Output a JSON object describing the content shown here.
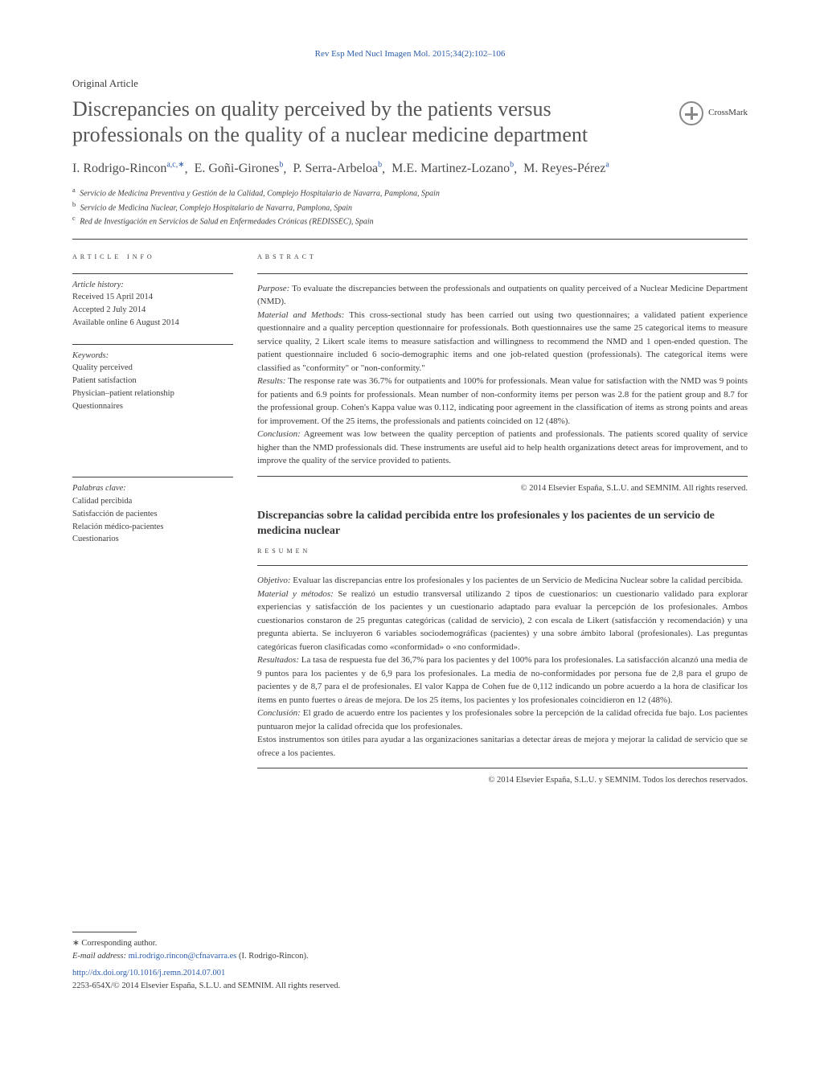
{
  "journal_ref": "Rev Esp Med Nucl Imagen Mol. 2015;34(2):102–106",
  "article_type": "Original Article",
  "title": "Discrepancies on quality perceived by the patients versus professionals on the quality of a nuclear medicine department",
  "crossmark_label": "CrossMark",
  "authors": [
    {
      "name": "I. Rodrigo-Rincon",
      "sup": "a,c,∗"
    },
    {
      "name": "E. Goñi-Girones",
      "sup": "b"
    },
    {
      "name": "P. Serra-Arbeloa",
      "sup": "b"
    },
    {
      "name": "M.E. Martinez-Lozano",
      "sup": "b"
    },
    {
      "name": "M. Reyes-Pérez",
      "sup": "a"
    }
  ],
  "affiliations": [
    {
      "label": "a",
      "text": "Servicio de Medicina Preventiva y Gestión de la Calidad, Complejo Hospitalario de Navarra, Pamplona, Spain"
    },
    {
      "label": "b",
      "text": "Servicio de Medicina Nuclear, Complejo Hospitalario de Navarra, Pamplona, Spain"
    },
    {
      "label": "c",
      "text": "Red de Investigación en Servicios de Salud en Enfermedades Crónicas (REDISSEC), Spain"
    }
  ],
  "article_info_label": "ARTICLE INFO",
  "abstract_label": "ABSTRACT",
  "history": {
    "title": "Article history:",
    "received": "Received 15 April 2014",
    "accepted": "Accepted 2 July 2014",
    "online": "Available online 6 August 2014"
  },
  "keywords": {
    "title": "Keywords:",
    "items": [
      "Quality perceived",
      "Patient satisfaction",
      "Physician–patient relationship",
      "Questionnaires"
    ]
  },
  "abstract": {
    "purpose_label": "Purpose:",
    "purpose": "To evaluate the discrepancies between the professionals and outpatients on quality perceived of a Nuclear Medicine Department (NMD).",
    "methods_label": "Material and Methods:",
    "methods": "This cross-sectional study has been carried out using two questionnaires; a validated patient experience questionnaire and a quality perception questionnaire for professionals. Both questionnaires use the same 25 categorical items to measure service quality, 2 Likert scale items to measure satisfaction and willingness to recommend the NMD and 1 open-ended question. The patient questionnaire included 6 socio-demographic items and one job-related question (professionals). The categorical items were classified as \"conformity\" or \"non-conformity.\"",
    "results_label": "Results:",
    "results": "The response rate was 36.7% for outpatients and 100% for professionals. Mean value for satisfaction with the NMD was 9 points for patients and 6.9 points for professionals. Mean number of non-conformity items per person was 2.8 for the patient group and 8.7 for the professional group. Cohen's Kappa value was 0.112, indicating poor agreement in the classification of items as strong points and areas for improvement. Of the 25 items, the professionals and patients coincided on 12 (48%).",
    "conclusion_label": "Conclusion:",
    "conclusion": "Agreement was low between the quality perception of patients and professionals. The patients scored quality of service higher than the NMD professionals did. These instruments are useful aid to help health organizations detect areas for improvement, and to improve the quality of the service provided to patients."
  },
  "copyright_en": "© 2014 Elsevier España, S.L.U. and SEMNIM. All rights reserved.",
  "spanish_title": "Discrepancias sobre la calidad percibida entre los profesionales y los pacientes de un servicio de medicina nuclear",
  "resumen_label": "RESUMEN",
  "palabras": {
    "title": "Palabras clave:",
    "items": [
      "Calidad percibida",
      "Satisfacción de pacientes",
      "Relación médico-pacientes",
      "Cuestionarios"
    ]
  },
  "resumen": {
    "objetivo_label": "Objetivo:",
    "objetivo": "Evaluar las discrepancias entre los profesionales y los pacientes de un Servicio de Medicina Nuclear sobre la calidad percibida.",
    "material_label": "Material y métodos:",
    "material": "Se realizó un estudio transversal utilizando 2 tipos de cuestionarios: un cuestionario validado para explorar experiencias y satisfacción de los pacientes y un cuestionario adaptado para evaluar la percepción de los profesionales. Ambos cuestionarios constaron de 25 preguntas categóricas (calidad de servicio), 2 con escala de Likert (satisfacción y recomendación) y una pregunta abierta. Se incluyeron 6 variables sociodemográficas (pacientes) y una sobre ámbito laboral (profesionales). Las preguntas categóricas fueron clasificadas como «conformidad» o «no conformidad».",
    "resultados_label": "Resultados:",
    "resultados": "La tasa de respuesta fue del 36,7% para los pacientes y del 100% para los profesionales. La satisfacción alcanzó una media de 9 puntos para los pacientes y de 6,9 para los profesionales. La media de no-conformidades por persona fue de 2,8 para el grupo de pacientes y de 8,7 para el de profesionales. El valor Kappa de Cohen fue de 0,112 indicando un pobre acuerdo a la hora de clasificar los ítems en punto fuertes o áreas de mejora. De los 25 ítems, los pacientes y los profesionales coincidieron en 12 (48%).",
    "conclusion_label": "Conclusión:",
    "conclusion": "El grado de acuerdo entre los pacientes y los profesionales sobre la percepción de la calidad ofrecida fue bajo. Los pacientes puntuaron mejor la calidad ofrecida que los profesionales.",
    "extra": "Estos instrumentos son útiles para ayudar a las organizaciones sanitarias a detectar áreas de mejora y mejorar la calidad de servicio que se ofrece a los pacientes."
  },
  "copyright_es": "© 2014 Elsevier España, S.L.U. y SEMNIM. Todos los derechos reservados.",
  "corresponding": {
    "label": "∗ Corresponding author.",
    "email_label": "E-mail address:",
    "email": "mi.rodrigo.rincon@cfnavarra.es",
    "email_name": "(I. Rodrigo-Rincon)."
  },
  "doi": "http://dx.doi.org/10.1016/j.remn.2014.07.001",
  "footer_copyright": "2253-654X/© 2014 Elsevier España, S.L.U. and SEMNIM. All rights reserved."
}
